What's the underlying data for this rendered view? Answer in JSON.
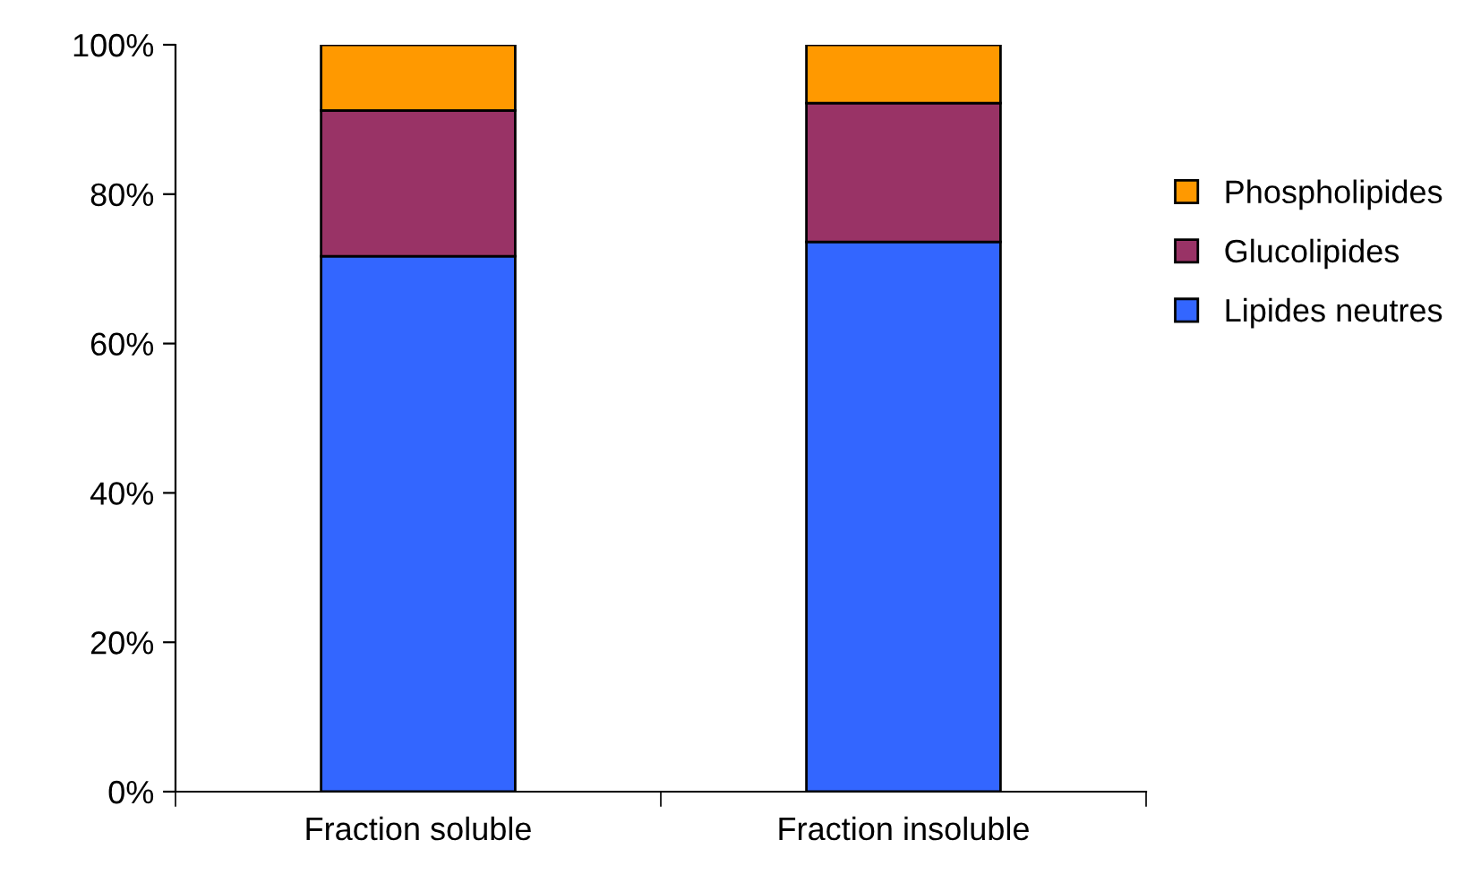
{
  "chart_data": {
    "type": "bar",
    "stacked": true,
    "categories": [
      "Fraction soluble",
      "Fraction insoluble"
    ],
    "series": [
      {
        "name": "Lipides neutres",
        "color": "#3366ff",
        "values": [
          71.7,
          73.6
        ]
      },
      {
        "name": "Glucolipides",
        "color": "#993366",
        "values": [
          19.5,
          18.6
        ]
      },
      {
        "name": "Phospholipides",
        "color": "#ff9900",
        "values": [
          8.8,
          7.8
        ]
      }
    ],
    "ylim": [
      0,
      100
    ],
    "yticks": [
      {
        "value": 0,
        "label": "0%"
      },
      {
        "value": 20,
        "label": "20%"
      },
      {
        "value": 40,
        "label": "40%"
      },
      {
        "value": 60,
        "label": "60%"
      },
      {
        "value": 80,
        "label": "80%"
      },
      {
        "value": 100,
        "label": "100%"
      }
    ],
    "grid": false,
    "legend": "right"
  }
}
